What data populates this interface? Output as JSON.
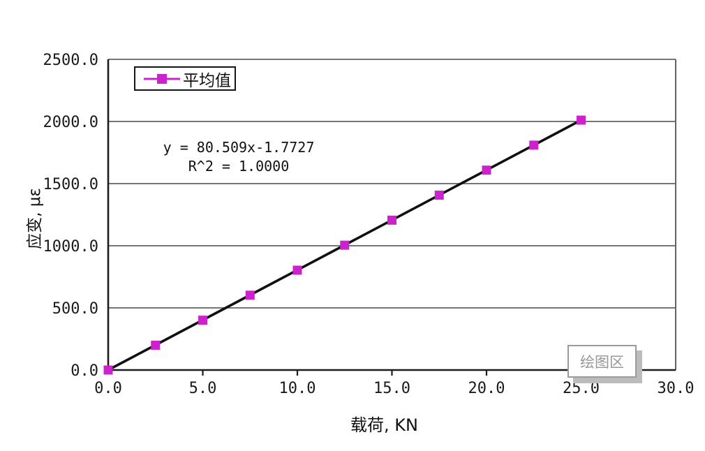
{
  "chart_data": {
    "type": "scatter",
    "title": "",
    "xlabel": "载荷, KN",
    "ylabel": "应变, με",
    "xlim": [
      0.0,
      30.0
    ],
    "ylim": [
      0.0,
      2500.0
    ],
    "grid": "horizontal-only",
    "x_ticks": {
      "values": [
        0,
        5,
        10,
        15,
        20,
        25,
        30
      ],
      "labels": [
        "0.0",
        "5.0",
        "10.0",
        "15.0",
        "20.0",
        "25.0",
        "30.0"
      ]
    },
    "y_ticks": {
      "values": [
        0,
        500,
        1000,
        1500,
        2000,
        2500
      ],
      "labels": [
        "0.0",
        "500.0",
        "1000.0",
        "1500.0",
        "2000.0",
        "2500.0"
      ]
    },
    "series": [
      {
        "name": "平均值",
        "marker": "square",
        "color": "#CC22CC",
        "x": [
          0.0,
          2.5,
          5.0,
          7.5,
          10.0,
          12.5,
          15.0,
          17.5,
          20.0,
          22.5,
          25.0
        ],
        "y": [
          0.0,
          199.5,
          400.8,
          602.0,
          803.3,
          1004.6,
          1205.9,
          1407.1,
          1608.4,
          1809.7,
          2010.9
        ]
      }
    ],
    "trendline": {
      "slope": 80.509,
      "intercept": -1.7727,
      "color": "#101010",
      "label_line1": "y = 80.509x-1.7727",
      "label_line2": "R^2 = 1.0000"
    },
    "legend": {
      "label": "平均值",
      "position": "top-left-inside"
    },
    "tooltip": {
      "label": "绘图区"
    }
  },
  "colors": {
    "series_marker": "#CC22CC",
    "trendline": "#101010",
    "gridline": "#636363",
    "axis": "#1c1c1c",
    "tick_text": "#1a1a1a",
    "tooltip_border": "#9b9b9b",
    "tooltip_text": "#979797",
    "tooltip_shadow": "#bcbcbc",
    "legend_border": "#141414",
    "background": "#ffffff"
  }
}
